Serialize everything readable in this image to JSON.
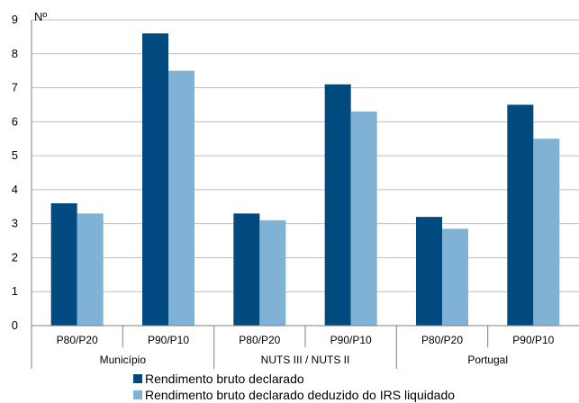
{
  "chart_data": {
    "type": "bar",
    "unit_label": "Nº",
    "groups": [
      {
        "label": "Município",
        "categories": [
          "P80/P20",
          "P90/P10"
        ]
      },
      {
        "label": "NUTS III / NUTS II",
        "categories": [
          "P80/P20",
          "P90/P10"
        ]
      },
      {
        "label": "Portugal",
        "categories": [
          "P80/P20",
          "P90/P10"
        ]
      }
    ],
    "series": [
      {
        "name": "Rendimento bruto declarado",
        "color": "#004a7f",
        "values": [
          3.6,
          8.6,
          3.3,
          7.1,
          3.2,
          6.5
        ]
      },
      {
        "name": "Rendimento bruto declarado deduzido do IRS liquidado",
        "color": "#7fb2d4",
        "values": [
          3.3,
          7.5,
          3.1,
          6.3,
          2.85,
          5.5
        ]
      }
    ],
    "ylim": [
      0,
      9
    ],
    "yticks": [
      "0",
      "1",
      "2",
      "3",
      "4",
      "5",
      "6",
      "7",
      "8",
      "9"
    ],
    "grid": true,
    "legend_position": "bottom"
  }
}
